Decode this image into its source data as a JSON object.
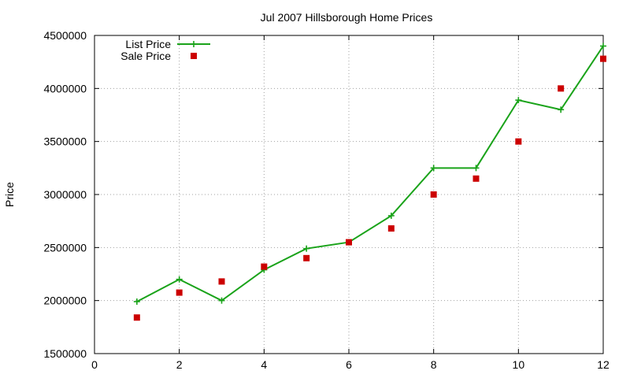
{
  "chart_data": {
    "type": "line",
    "title": "Jul 2007 Hillsborough Home Prices",
    "xlabel": "",
    "ylabel": "Price",
    "xlim": [
      0,
      12
    ],
    "ylim": [
      1500000,
      4500000
    ],
    "x_ticks": [
      "0",
      "2",
      "4",
      "6",
      "8",
      "10",
      "12"
    ],
    "y_ticks": [
      "1500000",
      "2000000",
      "2500000",
      "3000000",
      "3500000",
      "4000000",
      "4500000"
    ],
    "grid": true,
    "legend_position": "top-left",
    "x": [
      1,
      2,
      3,
      4,
      5,
      6,
      7,
      8,
      9,
      10,
      11,
      12
    ],
    "series": [
      {
        "name": "List Price",
        "style": "line-plus",
        "color": "#1aa31a",
        "values": [
          1990000,
          2200000,
          2000000,
          2290000,
          2490000,
          2550000,
          2800000,
          3250000,
          3250000,
          3890000,
          3800000,
          4400000
        ]
      },
      {
        "name": "Sale Price",
        "style": "square",
        "color": "#cc0000",
        "values": [
          1840000,
          2075000,
          2180000,
          2320000,
          2400000,
          2550000,
          2680000,
          3000000,
          3150000,
          3500000,
          4000000,
          4280000
        ]
      }
    ]
  }
}
